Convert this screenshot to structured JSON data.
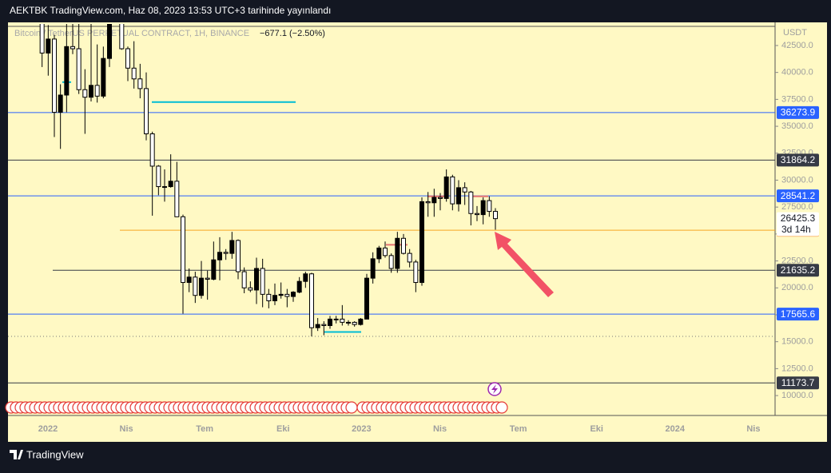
{
  "chart_data": {
    "type": "candlestick",
    "title": "AEKTBK TradingView.com, Haz 08, 2023 13:53 UTC+3 tarihinde yayınlandı",
    "symbol": "Bitcoin / TetherUS PERPETUAL CONTRACT, 1H, BINANCE",
    "change": "−677.1 (−2.50%)",
    "axis_unit": "USDT",
    "brand": "TradingView",
    "countdown": "3d 14h",
    "up_color": "#000000",
    "down_color": "#ffffff",
    "ylim": [
      8300,
      44500
    ],
    "yticks": [
      {
        "value": 10000,
        "label": "10000.0"
      },
      {
        "value": 12500,
        "label": "12500.0"
      },
      {
        "value": 15000,
        "label": "15000.0"
      },
      {
        "value": 17500,
        "label": "17500.0"
      },
      {
        "value": 20000,
        "label": "20000.0"
      },
      {
        "value": 22500,
        "label": "22500.0"
      },
      {
        "value": 25000,
        "label": "25000.0"
      },
      {
        "value": 27500,
        "label": "27500.0"
      },
      {
        "value": 30000,
        "label": "30000.0"
      },
      {
        "value": 32500,
        "label": "32500.0"
      },
      {
        "value": 35000,
        "label": "35000.0"
      },
      {
        "value": 37500,
        "label": "37500.0"
      },
      {
        "value": 40000,
        "label": "40000.0"
      },
      {
        "value": 42500,
        "label": "42500.0"
      }
    ],
    "x_labels": [
      "2022",
      "Nis",
      "Tem",
      "Eki",
      "2023",
      "Nis",
      "Tem",
      "Eki",
      "2024",
      "Nis"
    ],
    "levels": [
      {
        "value": 36273.9,
        "color": "#2962ff",
        "box": "#2962ff"
      },
      {
        "value": 31864.2,
        "color": "#363a45",
        "box": "#363a45"
      },
      {
        "value": 28541.2,
        "color": "#2962ff",
        "box": "#2962ff"
      },
      {
        "value": 25354.8,
        "color": "#f5a623",
        "box": "#f57c00"
      },
      {
        "value": 21635.2,
        "color": "#363a45",
        "box": "#363a45"
      },
      {
        "value": 17565.6,
        "color": "#2962ff",
        "box": "#2962ff"
      },
      {
        "value": 11173.7,
        "color": "#363a45",
        "box": "#363a45"
      }
    ],
    "dotted_level": 15500,
    "segments": [
      {
        "value": 37250,
        "color": "#00bcd4"
      },
      {
        "value": 39100,
        "color": "#00bcd4"
      },
      {
        "value": 15900,
        "color": "#00bcd4"
      },
      {
        "value": 28500,
        "color": "#e57373"
      },
      {
        "value": 28500,
        "color": "#e57373"
      },
      {
        "value": 24000,
        "color": "#e57373"
      }
    ],
    "open": [
      49400,
      46800,
      46700,
      50800,
      46400,
      41800,
      43100,
      36300,
      37900,
      42400,
      42200,
      38400,
      37700,
      38800,
      37800,
      41300,
      46800,
      46400,
      42200,
      40400,
      39400,
      38500,
      34300,
      31300,
      29400,
      29400,
      29900,
      26600,
      20500,
      21000,
      19300,
      20900,
      20800,
      22600,
      23300,
      23200,
      24400,
      21500,
      20000,
      19800,
      21800,
      19400,
      18800,
      19300,
      19400,
      19200,
      19600,
      20600,
      21300,
      16300,
      16600,
      16500,
      17100,
      17100,
      16800,
      16800,
      16600,
      17100,
      20900,
      22700,
      23700,
      23000,
      21800,
      24600,
      23200,
      22400,
      20500,
      28000,
      27900,
      28400,
      28300,
      30300,
      27800,
      29300,
      28900,
      26900,
      26800,
      28100,
      27100
    ],
    "high": [
      50800,
      49000,
      51800,
      52000,
      47500,
      44400,
      43500,
      38900,
      45000,
      45800,
      44500,
      40300,
      45400,
      42600,
      42400,
      46800,
      48200,
      47200,
      42400,
      42900,
      40800,
      40000,
      34500,
      31400,
      31000,
      32400,
      31700,
      26800,
      21800,
      21500,
      22500,
      21600,
      24300,
      24700,
      23600,
      25200,
      24500,
      21900,
      20600,
      22800,
      22700,
      19900,
      20400,
      20500,
      19900,
      19700,
      21000,
      21500,
      21400,
      17200,
      16900,
      17400,
      17400,
      18400,
      17000,
      16900,
      17200,
      21300,
      23300,
      23900,
      24300,
      23200,
      25200,
      25000,
      23600,
      22600,
      28400,
      28900,
      29200,
      28800,
      31000,
      30500,
      30000,
      29800,
      29000,
      27600,
      28400,
      28500,
      27400
    ],
    "low": [
      46700,
      45500,
      45600,
      45700,
      40500,
      39700,
      34000,
      32900,
      36300,
      41700,
      38000,
      34300,
      37300,
      37200,
      37600,
      40500,
      45000,
      42100,
      39200,
      38500,
      37600,
      33700,
      26700,
      28600,
      28000,
      29300,
      26600,
      17600,
      19600,
      18600,
      19000,
      18900,
      20700,
      20700,
      22600,
      22700,
      20800,
      19500,
      19600,
      18500,
      18200,
      18100,
      18400,
      19000,
      18200,
      18700,
      19500,
      20000,
      15500,
      16000,
      15600,
      16200,
      16700,
      16500,
      16500,
      16400,
      16500,
      17100,
      20400,
      22300,
      22800,
      21400,
      21400,
      23100,
      21900,
      19600,
      20200,
      26600,
      26600,
      27200,
      28000,
      27200,
      27100,
      27700,
      25800,
      26200,
      25900,
      26600,
      25400
    ],
    "close": [
      46800,
      46700,
      50800,
      46400,
      41800,
      43100,
      36300,
      37900,
      42400,
      42200,
      38400,
      37700,
      38800,
      37800,
      41300,
      46800,
      46400,
      42200,
      40400,
      39400,
      38500,
      34300,
      31300,
      29400,
      29400,
      29900,
      26600,
      20500,
      21000,
      19300,
      20900,
      20800,
      22600,
      23300,
      23200,
      24400,
      21500,
      20000,
      19800,
      21800,
      19400,
      18800,
      19300,
      19400,
      19200,
      19600,
      20600,
      21300,
      16300,
      16600,
      16500,
      17100,
      17100,
      16800,
      16800,
      16600,
      17100,
      20900,
      22700,
      23700,
      23000,
      21800,
      24600,
      23200,
      22400,
      20500,
      28000,
      27900,
      28400,
      28300,
      30300,
      27800,
      29300,
      28900,
      26900,
      26800,
      28100,
      27100,
      26425.3
    ]
  }
}
